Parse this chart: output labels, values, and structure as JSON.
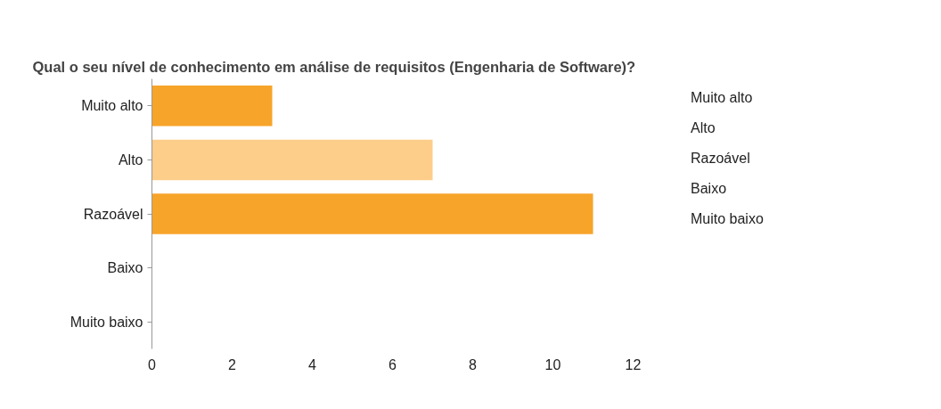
{
  "chart_data": {
    "type": "bar",
    "orientation": "horizontal",
    "title": "Qual o seu nível de conhecimento em análise de requisitos (Engenharia de Software)?",
    "categories": [
      "Muito alto",
      "Alto",
      "Razoável",
      "Baixo",
      "Muito baixo"
    ],
    "values": [
      3,
      7,
      11,
      0,
      0
    ],
    "colors": [
      "#f7a42a",
      "#fdcd8a",
      "#f7a42a",
      "#f7a42a",
      "#fdcd8a"
    ],
    "xlim": [
      0,
      12
    ],
    "xticks": [
      0,
      2,
      4,
      6,
      8,
      10,
      12
    ],
    "grid": false,
    "annotations": [
      "Muito alto",
      "Alto",
      "Razoável",
      "Baixo",
      "Muito baixo"
    ]
  }
}
